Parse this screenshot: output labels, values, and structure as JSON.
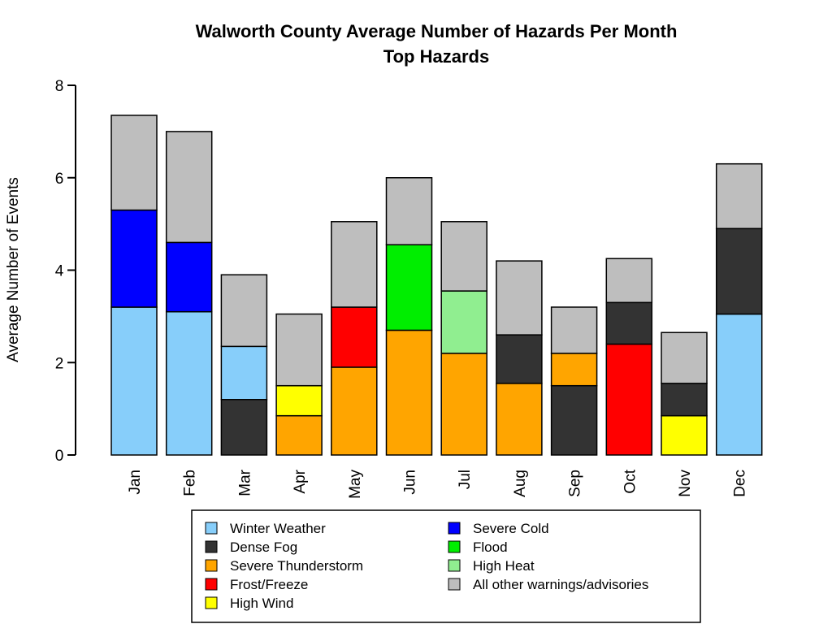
{
  "chart_data": {
    "type": "bar",
    "stacked": true,
    "title": "Walworth County Average Number of Hazards Per Month",
    "subtitle": "Top Hazards",
    "xlabel": "",
    "ylabel": "Average Number of Events",
    "ylim": [
      0,
      8
    ],
    "yticks": [
      "0",
      "2",
      "4",
      "6",
      "8"
    ],
    "grid": false,
    "legend_position": "bottom",
    "series": [
      {
        "name": "Winter Weather",
        "color": "#87CEFA"
      },
      {
        "name": "Dense Fog",
        "color": "#333333"
      },
      {
        "name": "Severe Thunderstorm",
        "color": "#FFA500"
      },
      {
        "name": "Frost/Freeze",
        "color": "#FF0000"
      },
      {
        "name": "High Wind",
        "color": "#FFFF00"
      },
      {
        "name": "Severe Cold",
        "color": "#0000FF"
      },
      {
        "name": "Flood",
        "color": "#00EE00"
      },
      {
        "name": "High Heat",
        "color": "#90EE90"
      },
      {
        "name": "All other warnings/advisories",
        "color": "#BEBEBE"
      }
    ],
    "categories": [
      "Jan",
      "Feb",
      "Mar",
      "Apr",
      "May",
      "Jun",
      "Jul",
      "Aug",
      "Sep",
      "Oct",
      "Nov",
      "Dec"
    ],
    "stacks": [
      [
        [
          "Winter Weather",
          3.2
        ],
        [
          "Severe Cold",
          2.1
        ],
        [
          "All other warnings/advisories",
          2.05
        ]
      ],
      [
        [
          "Winter Weather",
          3.1
        ],
        [
          "Severe Cold",
          1.5
        ],
        [
          "All other warnings/advisories",
          2.4
        ]
      ],
      [
        [
          "Dense Fog",
          1.2
        ],
        [
          "Winter Weather",
          1.15
        ],
        [
          "All other warnings/advisories",
          1.55
        ]
      ],
      [
        [
          "Severe Thunderstorm",
          0.85
        ],
        [
          "High Wind",
          0.65
        ],
        [
          "All other warnings/advisories",
          1.55
        ]
      ],
      [
        [
          "Severe Thunderstorm",
          1.9
        ],
        [
          "Frost/Freeze",
          1.3
        ],
        [
          "All other warnings/advisories",
          1.85
        ]
      ],
      [
        [
          "Severe Thunderstorm",
          2.7
        ],
        [
          "Flood",
          1.85
        ],
        [
          "All other warnings/advisories",
          1.45
        ]
      ],
      [
        [
          "Severe Thunderstorm",
          2.2
        ],
        [
          "High Heat",
          1.35
        ],
        [
          "All other warnings/advisories",
          1.5
        ]
      ],
      [
        [
          "Severe Thunderstorm",
          1.55
        ],
        [
          "Dense Fog",
          1.05
        ],
        [
          "All other warnings/advisories",
          1.6
        ]
      ],
      [
        [
          "Dense Fog",
          1.5
        ],
        [
          "Severe Thunderstorm",
          0.7
        ],
        [
          "All other warnings/advisories",
          1.0
        ]
      ],
      [
        [
          "Frost/Freeze",
          2.4
        ],
        [
          "Dense Fog",
          0.9
        ],
        [
          "All other warnings/advisories",
          0.95
        ]
      ],
      [
        [
          "High Wind",
          0.85
        ],
        [
          "Dense Fog",
          0.7
        ],
        [
          "All other warnings/advisories",
          1.1
        ]
      ],
      [
        [
          "Winter Weather",
          3.05
        ],
        [
          "Dense Fog",
          1.85
        ],
        [
          "All other warnings/advisories",
          1.4
        ]
      ]
    ]
  }
}
